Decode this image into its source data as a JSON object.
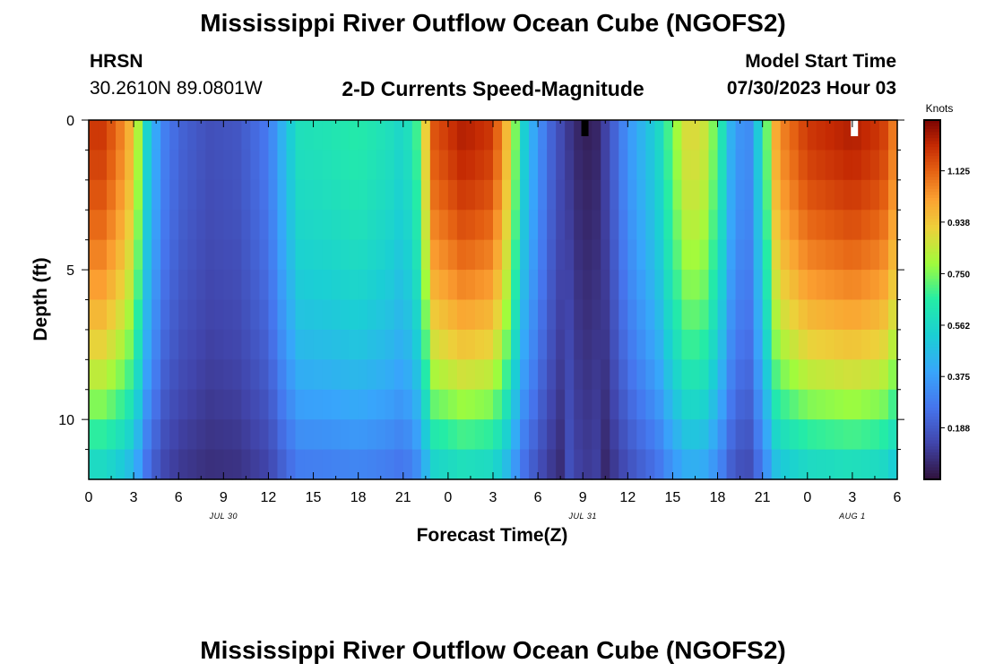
{
  "title": "Mississippi River Outflow Ocean Cube (NGOFS2)",
  "station": "HRSN",
  "coordinates": "30.2610N  89.0801W",
  "subtitle": "2-D Currents Speed-Magnitude",
  "model_start_label": "Model Start Time",
  "model_start_value": "07/30/2023 Hour 03",
  "footer_title": "Mississippi River Outflow Ocean Cube (NGOFS2)",
  "chart_data": {
    "type": "heatmap",
    "xlabel": "Forecast Time(Z)",
    "ylabel": "Depth (ft)",
    "x_tick_labels": [
      "0",
      "3",
      "6",
      "9",
      "12",
      "15",
      "18",
      "21",
      "0",
      "3",
      "6",
      "9",
      "12",
      "15",
      "18",
      "21",
      "0",
      "3",
      "6"
    ],
    "date_labels": [
      "JUL 30",
      "JUL 31",
      "AUG 1"
    ],
    "y_tick_labels": [
      "0",
      "5",
      "10"
    ],
    "ylim": [
      0,
      12
    ],
    "x_hours": [
      0,
      54
    ],
    "colorbar": {
      "unit": "Knots",
      "tick_labels": [
        "1.125",
        "0.938",
        "0.750",
        "0.562",
        "0.375",
        "0.188"
      ],
      "tick_values": [
        1.125,
        0.938,
        0.75,
        0.562,
        0.375,
        0.188
      ],
      "range": [
        0.0,
        1.31
      ]
    },
    "surface_speed_knots": [
      [
        0,
        1.2
      ],
      [
        1,
        1.2
      ],
      [
        2,
        1.1
      ],
      [
        3,
        0.95
      ],
      [
        4,
        0.5
      ],
      [
        5,
        0.3
      ],
      [
        6,
        0.22
      ],
      [
        8,
        0.16
      ],
      [
        10,
        0.18
      ],
      [
        12,
        0.28
      ],
      [
        13,
        0.45
      ],
      [
        14,
        0.6
      ],
      [
        16,
        0.62
      ],
      [
        18,
        0.65
      ],
      [
        20,
        0.6
      ],
      [
        21,
        0.55
      ],
      [
        22,
        0.7
      ],
      [
        23,
        1.15
      ],
      [
        25,
        1.25
      ],
      [
        27,
        1.2
      ],
      [
        28,
        0.95
      ],
      [
        29,
        0.55
      ],
      [
        30,
        0.35
      ],
      [
        31,
        0.2
      ],
      [
        32,
        0.1
      ],
      [
        33,
        0.03
      ],
      [
        34,
        0.05
      ],
      [
        35,
        0.2
      ],
      [
        36,
        0.35
      ],
      [
        37,
        0.45
      ],
      [
        38,
        0.55
      ],
      [
        39,
        0.75
      ],
      [
        40,
        0.9
      ],
      [
        41,
        0.88
      ],
      [
        42,
        0.7
      ],
      [
        43,
        0.4
      ],
      [
        44,
        0.3
      ],
      [
        45,
        0.6
      ],
      [
        46,
        1.05
      ],
      [
        48,
        1.2
      ],
      [
        51,
        1.25
      ],
      [
        53,
        1.2
      ],
      [
        54,
        1.05
      ]
    ],
    "depth_profile_factor": [
      1.0,
      0.98,
      0.95,
      0.91,
      0.86,
      0.8,
      0.73,
      0.64,
      0.54,
      0.44
    ]
  }
}
